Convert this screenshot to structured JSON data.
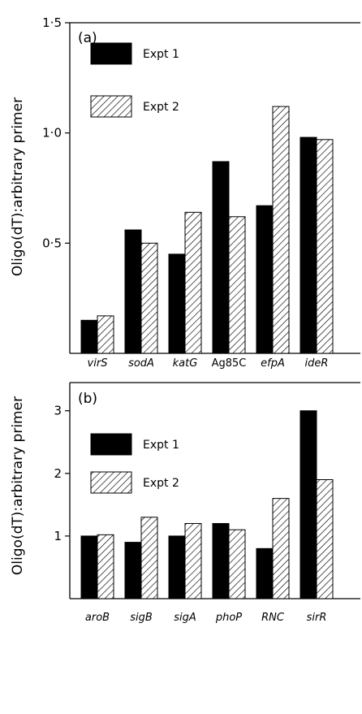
{
  "chart_data": [
    {
      "type": "bar",
      "panel_label": "(a)",
      "ylabel": "Oligo(dT):arbitrary primer",
      "categories": [
        "virS",
        "sodA",
        "katG",
        "Ag85C",
        "efpA",
        "ideR"
      ],
      "category_italic": [
        true,
        true,
        true,
        false,
        true,
        true
      ],
      "series": [
        {
          "name": "Expt 1",
          "values": [
            0.15,
            0.56,
            0.45,
            0.87,
            0.67,
            0.98
          ],
          "fill": "solid"
        },
        {
          "name": "Expt 2",
          "values": [
            0.17,
            0.5,
            0.64,
            0.62,
            1.12,
            0.97
          ],
          "fill": "hatched"
        }
      ],
      "ylim": [
        0,
        1.5
      ],
      "yticks": [
        0.5,
        1.0,
        1.5
      ],
      "ytick_labels": [
        "0·5",
        "1·0",
        "1·5"
      ],
      "legend_position": "top-left",
      "grid": false
    },
    {
      "type": "bar",
      "panel_label": "(b)",
      "ylabel": "Oligo(dT):arbitrary primer",
      "categories": [
        "aroB",
        "sigB",
        "sigA",
        "phoP",
        "RNC",
        "sirR"
      ],
      "category_italic": [
        true,
        true,
        true,
        true,
        true,
        true
      ],
      "series": [
        {
          "name": "Expt 1",
          "values": [
            1.0,
            0.9,
            1.0,
            1.2,
            0.8,
            3.0
          ],
          "fill": "solid"
        },
        {
          "name": "Expt 2",
          "values": [
            1.02,
            1.3,
            1.2,
            1.1,
            1.6,
            1.9
          ],
          "fill": "hatched"
        }
      ],
      "ylim": [
        0,
        3.45
      ],
      "yticks": [
        1,
        2,
        3
      ],
      "ytick_labels": [
        "1",
        "2",
        "3"
      ],
      "legend_position": "top-left",
      "grid": false
    }
  ]
}
